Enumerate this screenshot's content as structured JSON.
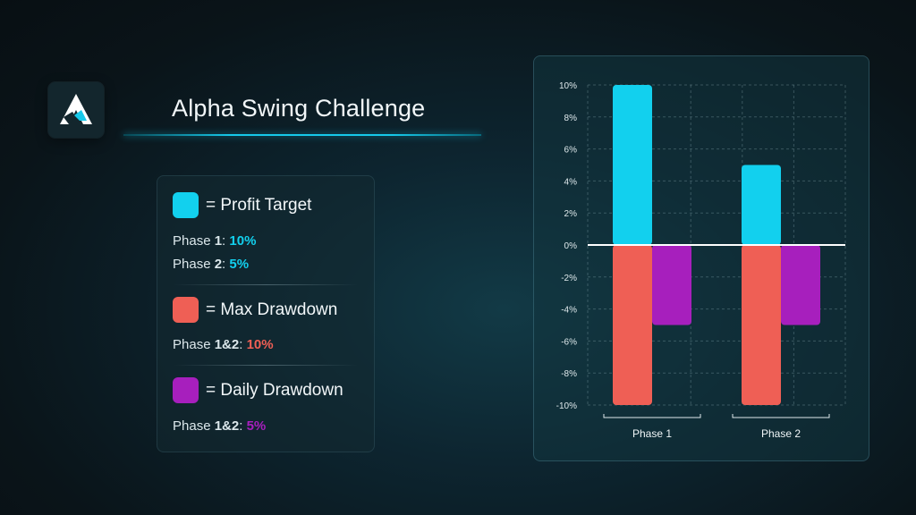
{
  "title": "Alpha Swing Challenge",
  "logo_icon": "alpha-logo-icon",
  "colors": {
    "profit": "#12d0ee",
    "max_drawdown": "#ef5f55",
    "daily_drawdown": "#a71fbd"
  },
  "legend": {
    "profit": {
      "label": "= Profit Target",
      "lines": [
        {
          "prefix": "Phase ",
          "bold": "1",
          "sep": ": ",
          "value": "10%"
        },
        {
          "prefix": "Phase ",
          "bold": "2",
          "sep": ": ",
          "value": "5%"
        }
      ]
    },
    "max_drawdown": {
      "label": "= Max Drawdown",
      "lines": [
        {
          "prefix": "Phase ",
          "bold": "1&2",
          "sep": ": ",
          "value": "10%"
        }
      ]
    },
    "daily_drawdown": {
      "label": "= Daily Drawdown",
      "lines": [
        {
          "prefix": "Phase ",
          "bold": "1&2",
          "sep": ": ",
          "value": "5%"
        }
      ]
    }
  },
  "chart_data": {
    "type": "bar",
    "categories": [
      "Phase 1",
      "Phase 2"
    ],
    "ylim": [
      -10,
      10
    ],
    "yticks": [
      "10%",
      "8%",
      "6%",
      "4%",
      "2%",
      "0%",
      "-2%",
      "-4%",
      "-6%",
      "-8%",
      "-10%"
    ],
    "ytick_values": [
      10,
      8,
      6,
      4,
      2,
      0,
      -2,
      -4,
      -6,
      -8,
      -10
    ],
    "grid": true,
    "series": [
      {
        "key": "profit",
        "values": [
          10,
          5
        ]
      },
      {
        "key": "max_drawdown",
        "values": [
          -10,
          -10
        ]
      },
      {
        "key": "daily_drawdown",
        "values": [
          -5,
          -5
        ]
      }
    ]
  }
}
